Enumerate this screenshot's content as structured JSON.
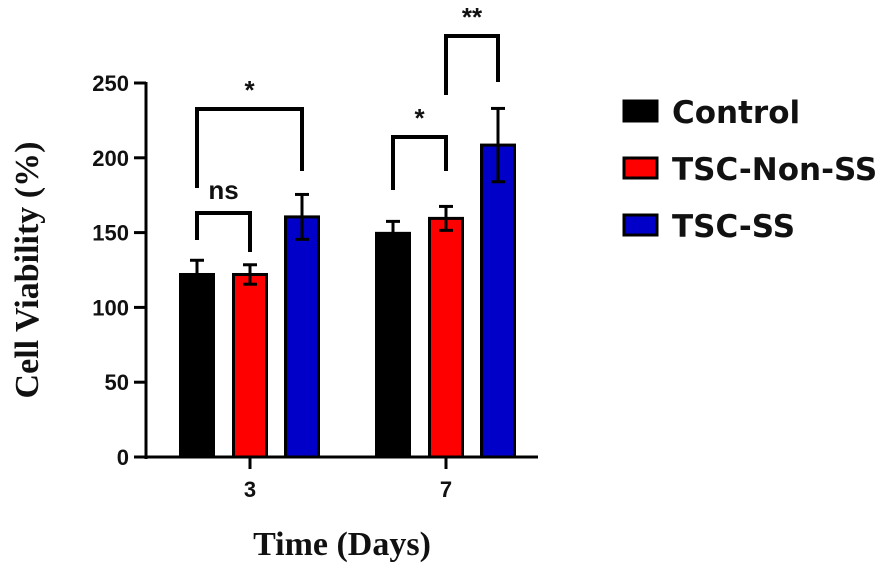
{
  "chart_data": {
    "type": "bar",
    "xlabel": "Time (Days)",
    "ylabel": "Cell Viability (%)",
    "categories": [
      "3",
      "7"
    ],
    "ylim": [
      0,
      250
    ],
    "yticks": [
      0,
      50,
      100,
      150,
      200,
      250
    ],
    "grid": false,
    "legend_position": "right",
    "series": [
      {
        "name": "Control",
        "color": "#000000",
        "values": [
          122,
          149.5
        ],
        "errors": [
          9.5,
          8
        ]
      },
      {
        "name": "TSC-Non-SS",
        "color": "#ff0000",
        "values": [
          122,
          159.5
        ],
        "errors": [
          6.5,
          8
        ]
      },
      {
        "name": "TSC-SS",
        "color": "#0000c8",
        "values": [
          160.5,
          208.5
        ],
        "errors": [
          15,
          24.5
        ]
      }
    ],
    "significance": [
      {
        "category": "3",
        "from": "Control",
        "to": "TSC-Non-SS",
        "label": "ns"
      },
      {
        "category": "3",
        "from": "Control",
        "to": "TSC-SS",
        "label": "*"
      },
      {
        "category": "7",
        "from": "Control",
        "to": "TSC-Non-SS",
        "label": "*"
      },
      {
        "category": "7",
        "from": "TSC-Non-SS",
        "to": "TSC-SS",
        "label": "**"
      }
    ]
  }
}
